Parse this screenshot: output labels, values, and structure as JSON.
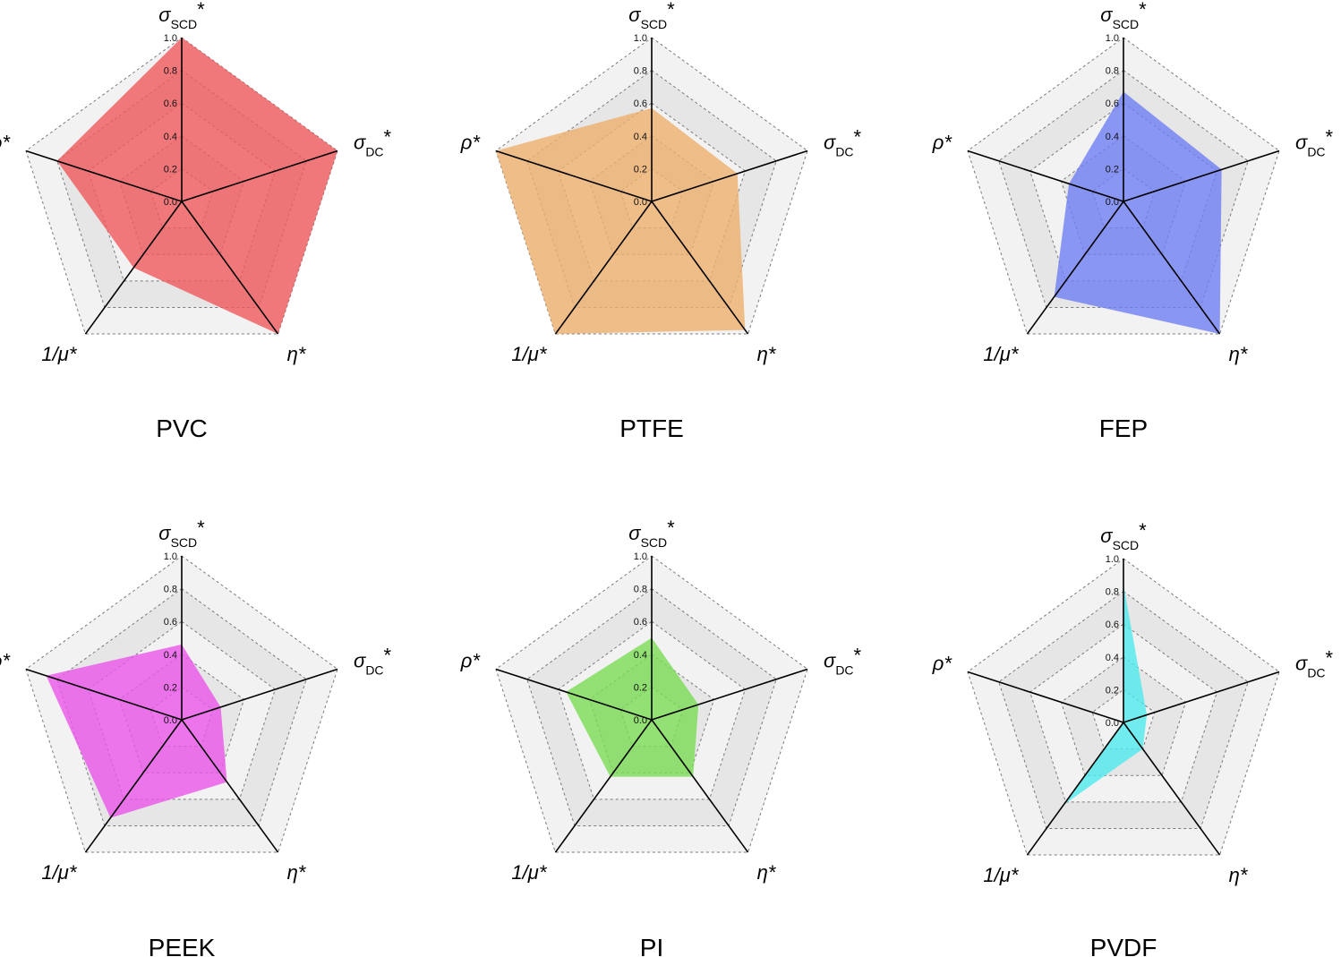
{
  "chart_data": [
    {
      "type": "radar",
      "title": "PVC",
      "axes": [
        "σSCD*",
        "σDC*",
        "η*",
        "1/μ*",
        "ρ*"
      ],
      "ticks": [
        "0.0",
        "0.2",
        "0.4",
        "0.6",
        "0.8",
        "1.0"
      ],
      "range": [
        0,
        1
      ],
      "values": [
        1.0,
        1.0,
        1.0,
        0.5,
        0.8
      ],
      "color": "#f0595b"
    },
    {
      "type": "radar",
      "title": "PTFE",
      "axes": [
        "σSCD*",
        "σDC*",
        "η*",
        "1/μ*",
        "ρ*"
      ],
      "ticks": [
        "0.0",
        "0.2",
        "0.4",
        "0.6",
        "0.8",
        "1.0"
      ],
      "range": [
        0,
        1
      ],
      "values": [
        0.57,
        0.55,
        0.97,
        1.0,
        1.0
      ],
      "color": "#edb06d"
    },
    {
      "type": "radar",
      "title": "FEP",
      "axes": [
        "σSCD*",
        "σDC*",
        "η*",
        "1/μ*",
        "ρ*"
      ],
      "ticks": [
        "0.0",
        "0.2",
        "0.4",
        "0.6",
        "0.8",
        "1.0"
      ],
      "range": [
        0,
        1
      ],
      "values": [
        0.67,
        0.63,
        1.0,
        0.72,
        0.35
      ],
      "color": "#6f7ef2"
    },
    {
      "type": "radar",
      "title": "PEEK",
      "axes": [
        "σSCD*",
        "σDC*",
        "η*",
        "1/μ*",
        "ρ*"
      ],
      "ticks": [
        "0.0",
        "0.2",
        "0.4",
        "0.6",
        "0.8",
        "1.0"
      ],
      "range": [
        0,
        1
      ],
      "values": [
        0.46,
        0.25,
        0.47,
        0.74,
        0.87
      ],
      "color": "#ea55ea"
    },
    {
      "type": "radar",
      "title": "PI",
      "axes": [
        "σSCD*",
        "σDC*",
        "η*",
        "1/μ*",
        "ρ*"
      ],
      "ticks": [
        "0.0",
        "0.2",
        "0.4",
        "0.6",
        "0.8",
        "1.0"
      ],
      "range": [
        0,
        1
      ],
      "values": [
        0.5,
        0.3,
        0.43,
        0.43,
        0.55
      ],
      "color": "#7bdc55"
    },
    {
      "type": "radar",
      "title": "PVDF",
      "axes": [
        "σSCD*",
        "σDC*",
        "η*",
        "1/μ*",
        "ρ*"
      ],
      "ticks": [
        "0.0",
        "0.2",
        "0.4",
        "0.6",
        "0.8",
        "1.0"
      ],
      "range": [
        0,
        1
      ],
      "values": [
        0.84,
        0.15,
        0.2,
        0.62,
        0.0
      ],
      "color": "#4fe9ec"
    }
  ]
}
